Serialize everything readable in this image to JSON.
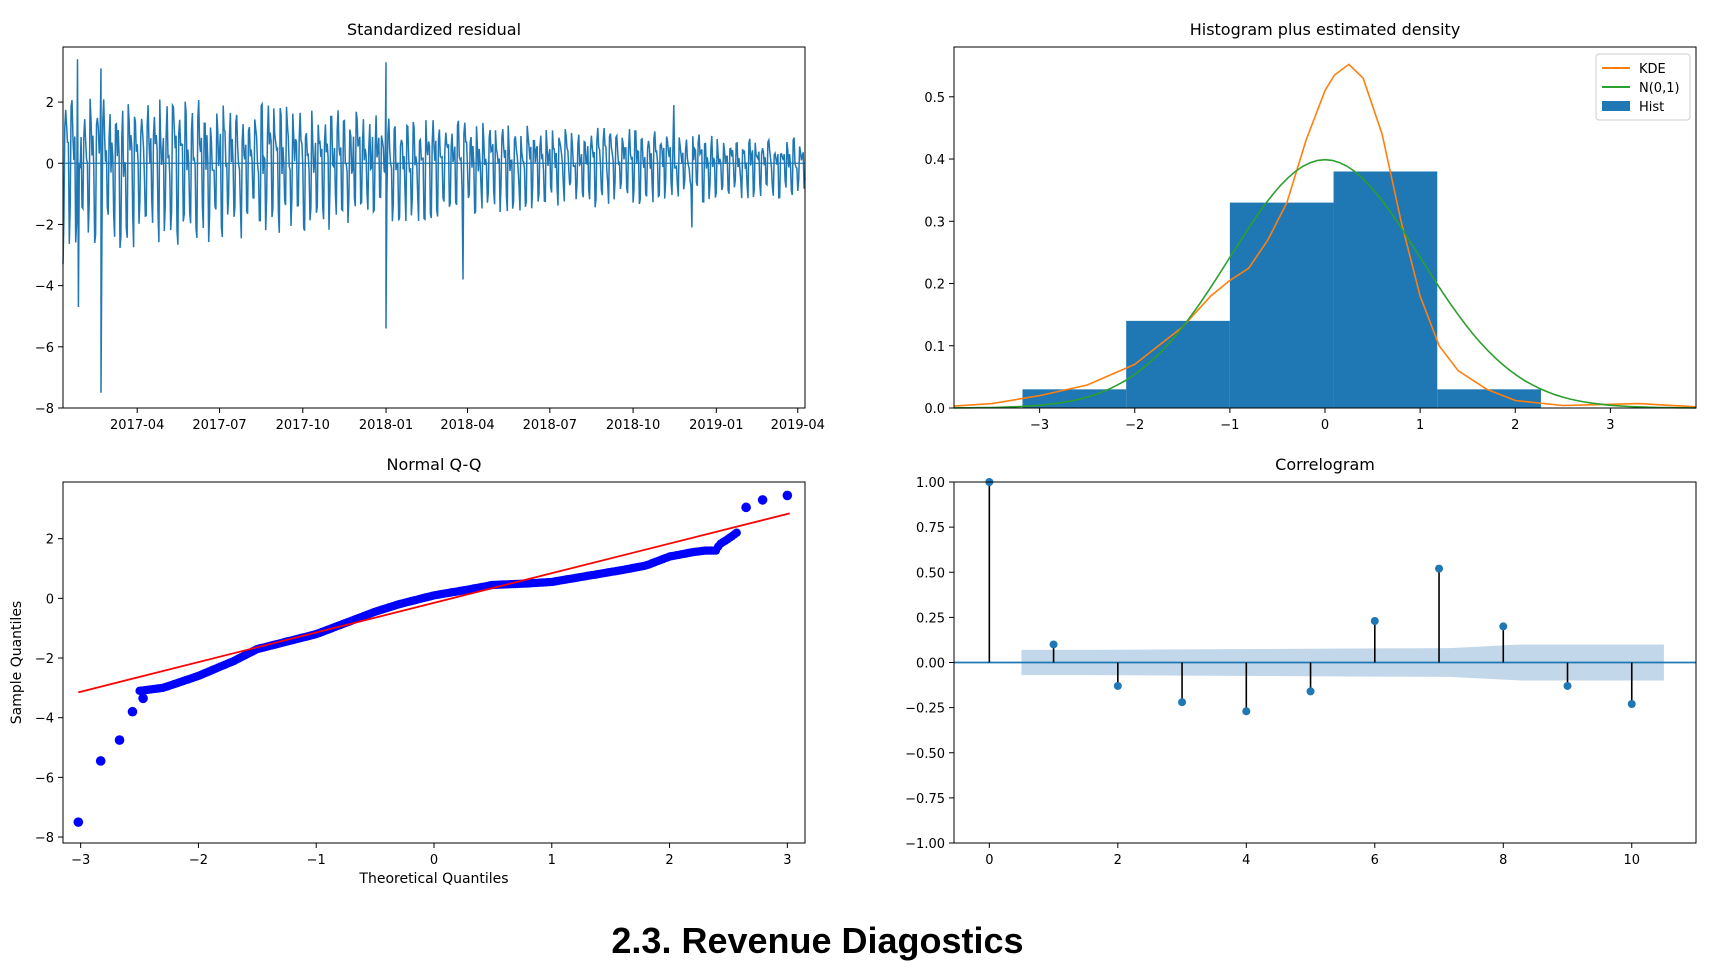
{
  "caption": "2.3. Revenue Diagostics",
  "colors": {
    "blue": "#1f77b4",
    "orange": "#ff7f0e",
    "green": "#2ca02c",
    "qq_points": "#0000ff",
    "qq_line": "#ff0000",
    "ci_band": "#c2d7ea"
  },
  "chart_data": [
    {
      "type": "line",
      "title": "Standardized residual",
      "xlabel": "",
      "ylabel": "",
      "x_range": [
        "2017-01-09",
        "2019-04-09"
      ],
      "x_ticks": [
        "2017-04",
        "2017-07",
        "2017-10",
        "2018-01",
        "2018-04",
        "2018-07",
        "2018-10",
        "2019-01",
        "2019-04"
      ],
      "ylim": [
        -8,
        3.8
      ],
      "y_ticks": [
        2,
        0,
        -2,
        -4,
        -6,
        -8
      ],
      "reference_line": 0,
      "notable_points": [
        {
          "x": "2017-01-09",
          "y": -3.3
        },
        {
          "x": "2017-01-25",
          "y": 3.4
        },
        {
          "x": "2017-01-26",
          "y": -4.7
        },
        {
          "x": "2017-02-20",
          "y": 3.1
        },
        {
          "x": "2017-02-20",
          "y": -7.5
        },
        {
          "x": "2018-01-01",
          "y": 3.3
        },
        {
          "x": "2018-01-01",
          "y": -5.4
        },
        {
          "x": "2018-03-27",
          "y": -3.8
        },
        {
          "x": "2018-11-15",
          "y": 1.9
        },
        {
          "x": "2018-12-05",
          "y": -2.1
        }
      ],
      "amplitude_trend": {
        "x": [
          "2017-01-09",
          "2017-06-01",
          "2017-10-01",
          "2018-01-01",
          "2018-06-01",
          "2018-10-01",
          "2019-01-01",
          "2019-04-09"
        ],
        "amplitude": [
          1.9,
          1.7,
          1.5,
          1.3,
          1.0,
          0.9,
          0.8,
          0.7
        ]
      }
    },
    {
      "type": "bar",
      "title": "Histogram plus estimated density",
      "xlim": [
        -3.9,
        3.9
      ],
      "ylim": [
        0,
        0.58
      ],
      "x_ticks": [
        -3,
        -2,
        -1,
        0,
        1,
        2,
        3
      ],
      "y_ticks": [
        0.0,
        0.1,
        0.2,
        0.3,
        0.4,
        0.5
      ],
      "legend_position": "top-right",
      "series": [
        {
          "name": "Hist",
          "kind": "histogram",
          "bin_edges": [
            -3.18,
            -2.09,
            -1.0,
            0.09,
            1.18,
            2.27
          ],
          "values": [
            0.03,
            0.14,
            0.33,
            0.38,
            0.03
          ]
        },
        {
          "name": "KDE",
          "kind": "line",
          "x": [
            -3.9,
            -3.5,
            -3.0,
            -2.5,
            -2.0,
            -1.5,
            -1.2,
            -1.0,
            -0.8,
            -0.6,
            -0.4,
            -0.2,
            0.0,
            0.1,
            0.25,
            0.4,
            0.6,
            0.8,
            1.0,
            1.2,
            1.4,
            1.7,
            2.0,
            2.5,
            3.0,
            3.3,
            3.9
          ],
          "y": [
            0.003,
            0.007,
            0.02,
            0.037,
            0.07,
            0.13,
            0.18,
            0.205,
            0.225,
            0.27,
            0.33,
            0.43,
            0.51,
            0.535,
            0.552,
            0.53,
            0.44,
            0.3,
            0.18,
            0.1,
            0.06,
            0.03,
            0.012,
            0.004,
            0.006,
            0.007,
            0.002
          ]
        },
        {
          "name": "N(0,1)",
          "kind": "line",
          "function": "normal_pdf"
        }
      ]
    },
    {
      "type": "scatter",
      "title": "Normal Q-Q",
      "xlabel": "Theoretical Quantiles",
      "ylabel": "Sample Quantiles",
      "xlim": [
        -3.15,
        3.15
      ],
      "ylim": [
        -8.2,
        3.9
      ],
      "x_ticks": [
        -3,
        -2,
        -1,
        0,
        1,
        2,
        3
      ],
      "y_ticks": [
        2,
        0,
        -2,
        -4,
        -6,
        -8
      ],
      "reference_line": {
        "x": [
          -3.02,
          3.02
        ],
        "y": [
          -3.15,
          2.85
        ]
      },
      "quantile_curve": {
        "x": [
          -2.5,
          -2.3,
          -2.0,
          -1.7,
          -1.5,
          -1.2,
          -1.0,
          -0.8,
          -0.5,
          -0.3,
          0.0,
          0.3,
          0.5,
          0.8,
          1.0,
          1.3,
          1.6,
          1.8,
          2.0,
          2.2,
          2.3,
          2.4,
          2.42,
          2.5,
          2.57
        ],
        "y": [
          -3.1,
          -3.0,
          -2.6,
          -2.1,
          -1.7,
          -1.4,
          -1.2,
          -0.9,
          -0.45,
          -0.2,
          0.1,
          0.3,
          0.45,
          0.5,
          0.55,
          0.75,
          0.95,
          1.1,
          1.4,
          1.55,
          1.6,
          1.6,
          1.8,
          2.0,
          2.2
        ]
      },
      "outliers": {
        "x": [
          -3.02,
          -2.83,
          -2.67,
          -2.56,
          -2.47,
          2.65,
          2.79,
          3.0
        ],
        "y": [
          -7.5,
          -5.45,
          -4.75,
          -3.8,
          -3.35,
          3.05,
          3.3,
          3.45
        ]
      }
    },
    {
      "type": "bar",
      "title": "Correlogram",
      "xlim": [
        -0.55,
        11.0
      ],
      "ylim": [
        -1.0,
        1.0
      ],
      "x_ticks": [
        0,
        2,
        4,
        6,
        8,
        10
      ],
      "y_ticks": [
        1.0,
        0.75,
        0.5,
        0.25,
        0.0,
        -0.25,
        -0.5,
        -0.75,
        -1.0
      ],
      "lags": [
        0,
        1,
        2,
        3,
        4,
        5,
        6,
        7,
        8,
        9,
        10
      ],
      "values": [
        1.0,
        0.1,
        -0.13,
        -0.22,
        -0.27,
        -0.16,
        0.23,
        0.52,
        0.2,
        -0.13,
        -0.23
      ],
      "confidence_band": {
        "x_start": 0.5,
        "x_end": 10.5,
        "half_width": [
          0.07,
          0.07,
          0.072,
          0.074,
          0.076,
          0.078,
          0.08,
          0.1,
          0.1,
          0.1
        ]
      }
    }
  ]
}
